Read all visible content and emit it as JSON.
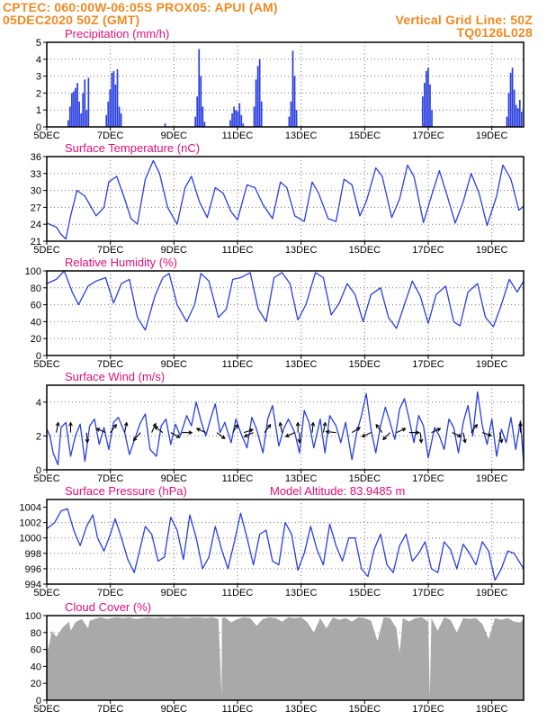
{
  "header": {
    "line1_left": "CPTEC:  060:00W-06:05S   PROX05: APUI (AM)",
    "line2_left": "05DEC2020 50Z (GMT)",
    "line2_right": "Vertical Grid Line: 50Z",
    "line3_right": "TQ0126L028"
  },
  "colors": {
    "header": "#f08a24",
    "panel_title": "#e0107a",
    "series": "#2a3fe0",
    "cloud": "#a9a9a9",
    "arrows": "#000000"
  },
  "chart_data": [
    {
      "type": "bar",
      "title": "Precipitation (mm/h)",
      "ylim": [
        0,
        5
      ],
      "yticks": [
        "0",
        "1",
        "2",
        "3",
        "4",
        "5"
      ],
      "xticks": [
        "5DEC",
        "7DEC",
        "9DEC",
        "11DEC",
        "13DEC",
        "15DEC",
        "17DEC",
        "19DEC"
      ],
      "xlim_days": [
        5,
        20
      ],
      "grid": true,
      "events": [
        {
          "day": 5.65,
          "values": [
            0.4,
            1.2,
            2.0,
            2.1,
            2.3,
            2.6,
            1.5,
            0.8,
            2.0,
            2.8,
            1.0,
            2.9
          ]
        },
        {
          "day": 6.85,
          "values": [
            0.7,
            1.5,
            2.2,
            3.2,
            3.3,
            2.5,
            3.4,
            1.2,
            0.8
          ]
        },
        {
          "day": 8.7,
          "values": [
            0.2
          ]
        },
        {
          "day": 9.65,
          "values": [
            0.6,
            1.8,
            4.6,
            3.0,
            1.2,
            0.3
          ]
        },
        {
          "day": 10.75,
          "values": [
            0.4,
            0.8,
            1.2,
            1.0,
            0.9,
            1.4,
            0.7,
            0.2
          ]
        },
        {
          "day": 11.5,
          "values": [
            1.2,
            2.8,
            3.6,
            4.0,
            1.5
          ]
        },
        {
          "day": 12.6,
          "values": [
            0.6,
            1.5,
            4.5,
            3.0,
            1.0
          ]
        },
        {
          "day": 16.8,
          "values": [
            1.8,
            2.6,
            3.3,
            3.5,
            2.5,
            1.0
          ]
        },
        {
          "day": 19.45,
          "values": [
            0.6,
            2.0,
            3.2,
            3.5,
            2.2,
            1.3,
            1.1,
            1.6,
            0.9
          ]
        }
      ]
    },
    {
      "type": "line",
      "title": "Surface Temperature (nC)",
      "ylim": [
        21,
        36
      ],
      "yticks": [
        "21",
        "24",
        "27",
        "30",
        "33",
        "36"
      ],
      "xticks": [
        "5DEC",
        "7DEC",
        "9DEC",
        "11DEC",
        "13DEC",
        "15DEC",
        "17DEC",
        "19DEC"
      ],
      "grid": true,
      "x_days": [
        5.0,
        5.3,
        5.45,
        5.6,
        5.75,
        5.95,
        6.2,
        6.4,
        6.55,
        6.8,
        6.95,
        7.2,
        7.45,
        7.65,
        7.85,
        8.1,
        8.35,
        8.55,
        8.8,
        9.1,
        9.35,
        9.55,
        9.8,
        10.05,
        10.3,
        10.55,
        10.8,
        11.0,
        11.3,
        11.55,
        11.8,
        12.1,
        12.35,
        12.55,
        12.8,
        13.1,
        13.35,
        13.55,
        13.85,
        14.1,
        14.35,
        14.6,
        14.85,
        15.05,
        15.35,
        15.55,
        15.85,
        16.1,
        16.35,
        16.55,
        16.85,
        17.1,
        17.35,
        17.6,
        17.85,
        18.1,
        18.35,
        18.6,
        18.85,
        19.15,
        19.35,
        19.6,
        19.85,
        20.0
      ],
      "y": [
        24.2,
        23.5,
        22.2,
        21.4,
        25.5,
        30.0,
        29.0,
        27.0,
        25.5,
        27.0,
        31.5,
        32.5,
        28.5,
        25.0,
        24.0,
        32.0,
        35.3,
        33.0,
        27.0,
        24.0,
        30.5,
        32.5,
        28.0,
        25.2,
        30.5,
        29.5,
        26.2,
        24.8,
        31.0,
        30.5,
        27.5,
        25.0,
        31.5,
        30.5,
        25.5,
        24.5,
        31.5,
        29.5,
        25.0,
        24.5,
        32.0,
        31.0,
        25.5,
        28.0,
        34.0,
        32.5,
        25.2,
        28.5,
        34.5,
        32.5,
        24.3,
        29.0,
        33.5,
        29.0,
        24.2,
        28.0,
        33.0,
        29.5,
        23.8,
        29.0,
        34.5,
        32.0,
        26.5,
        27.2
      ]
    },
    {
      "type": "line",
      "title": "Relative Humidity (%)",
      "ylim": [
        0,
        100
      ],
      "yticks": [
        "0",
        "20",
        "40",
        "60",
        "80",
        "100"
      ],
      "xticks": [
        "5DEC",
        "7DEC",
        "9DEC",
        "11DEC",
        "13DEC",
        "15DEC",
        "17DEC",
        "19DEC"
      ],
      "grid": true,
      "x_days": [
        5.0,
        5.3,
        5.55,
        5.8,
        6.0,
        6.3,
        6.55,
        6.85,
        7.1,
        7.35,
        7.6,
        7.85,
        8.1,
        8.4,
        8.65,
        8.85,
        9.1,
        9.4,
        9.65,
        9.85,
        10.1,
        10.4,
        10.65,
        10.85,
        11.1,
        11.4,
        11.65,
        11.9,
        12.15,
        12.4,
        12.65,
        12.9,
        13.15,
        13.45,
        13.7,
        13.95,
        14.2,
        14.45,
        14.7,
        14.95,
        15.2,
        15.5,
        15.75,
        16.0,
        16.25,
        16.5,
        16.75,
        17.0,
        17.25,
        17.55,
        17.8,
        18.0,
        18.25,
        18.55,
        18.8,
        19.05,
        19.3,
        19.55,
        19.8,
        20.0
      ],
      "y": [
        85,
        90,
        100,
        75,
        60,
        82,
        88,
        92,
        62,
        85,
        90,
        45,
        30,
        70,
        92,
        97,
        60,
        40,
        60,
        97,
        88,
        45,
        55,
        90,
        92,
        98,
        55,
        40,
        92,
        98,
        85,
        42,
        60,
        98,
        92,
        48,
        62,
        85,
        72,
        40,
        72,
        80,
        45,
        32,
        60,
        88,
        70,
        38,
        72,
        82,
        40,
        35,
        75,
        85,
        45,
        34,
        60,
        90,
        75,
        88
      ]
    },
    {
      "type": "line",
      "title": "Surface Wind (m/s)",
      "ylim": [
        0,
        5
      ],
      "yticks": [
        "0",
        "2",
        "4"
      ],
      "xticks": [
        "5DEC",
        "7DEC",
        "9DEC",
        "11DEC",
        "13DEC",
        "15DEC",
        "17DEC",
        "19DEC"
      ],
      "grid": true,
      "x_days": [
        5.0,
        5.1,
        5.2,
        5.35,
        5.45,
        5.6,
        5.75,
        5.9,
        6.05,
        6.2,
        6.35,
        6.5,
        6.65,
        6.8,
        6.95,
        7.1,
        7.25,
        7.45,
        7.6,
        7.8,
        7.95,
        8.1,
        8.25,
        8.45,
        8.6,
        8.75,
        8.9,
        9.05,
        9.2,
        9.4,
        9.55,
        9.7,
        9.85,
        10.0,
        10.15,
        10.3,
        10.45,
        10.6,
        10.8,
        10.95,
        11.1,
        11.3,
        11.45,
        11.6,
        11.8,
        11.95,
        12.1,
        12.3,
        12.45,
        12.6,
        12.8,
        12.95,
        13.1,
        13.25,
        13.4,
        13.6,
        13.75,
        13.9,
        14.1,
        14.25,
        14.4,
        14.6,
        14.75,
        14.9,
        15.05,
        15.2,
        15.35,
        15.5,
        15.65,
        15.8,
        15.95,
        16.1,
        16.25,
        16.4,
        16.55,
        16.7,
        16.85,
        17.0,
        17.2,
        17.35,
        17.5,
        17.65,
        17.8,
        17.95,
        18.1,
        18.25,
        18.4,
        18.55,
        18.7,
        18.85,
        19.0,
        19.15,
        19.3,
        19.45,
        19.6,
        19.75,
        19.9,
        20.0
      ],
      "y": [
        2.4,
        2.0,
        1.0,
        0.3,
        2.5,
        2.8,
        0.8,
        2.0,
        2.7,
        0.5,
        2.6,
        3.0,
        1.5,
        2.5,
        1.2,
        2.8,
        3.1,
        2.2,
        0.9,
        2.0,
        2.8,
        3.3,
        1.2,
        0.8,
        2.6,
        3.0,
        1.5,
        2.7,
        2.0,
        3.2,
        2.6,
        4.0,
        2.9,
        2.0,
        3.0,
        3.9,
        2.2,
        2.8,
        1.6,
        3.0,
        2.2,
        1.3,
        3.1,
        2.4,
        1.0,
        3.0,
        3.8,
        1.4,
        2.4,
        3.0,
        2.2,
        1.0,
        3.5,
        2.8,
        1.3,
        3.0,
        1.0,
        3.2,
        2.6,
        1.6,
        2.8,
        0.6,
        2.2,
        3.2,
        4.5,
        2.4,
        1.0,
        2.6,
        3.7,
        2.8,
        1.8,
        3.6,
        4.2,
        3.0,
        1.6,
        3.2,
        2.6,
        0.7,
        2.5,
        2.0,
        1.2,
        3.0,
        2.5,
        1.0,
        2.8,
        3.8,
        2.0,
        4.6,
        2.6,
        1.5,
        3.0,
        0.8,
        2.4,
        1.6,
        3.1,
        1.2,
        2.9,
        0.4
      ],
      "vectors": [
        {
          "day": 5.3,
          "dx": 0.2,
          "dy": 1.0
        },
        {
          "day": 5.75,
          "dx": 0.0,
          "dy": 1.0
        },
        {
          "day": 6.25,
          "dx": 0.1,
          "dy": -1.0
        },
        {
          "day": 6.85,
          "dx": -0.9,
          "dy": 0.4
        },
        {
          "day": 7.0,
          "dx": 0.6,
          "dy": 0.8
        },
        {
          "day": 7.45,
          "dx": 0.2,
          "dy": 1.0
        },
        {
          "day": 7.95,
          "dx": -0.7,
          "dy": -0.8
        },
        {
          "day": 8.3,
          "dx": 0.4,
          "dy": 0.9
        },
        {
          "day": 8.65,
          "dx": -0.8,
          "dy": 0.6
        },
        {
          "day": 8.9,
          "dx": 0.9,
          "dy": -0.5
        },
        {
          "day": 9.25,
          "dx": 1.0,
          "dy": 0.0
        },
        {
          "day": 10.0,
          "dx": -0.9,
          "dy": 0.4
        },
        {
          "day": 10.35,
          "dx": 0.8,
          "dy": -0.6
        },
        {
          "day": 10.85,
          "dx": 0.5,
          "dy": 0.8
        },
        {
          "day": 11.2,
          "dx": 0.9,
          "dy": 0.3
        },
        {
          "day": 11.5,
          "dx": -0.9,
          "dy": -0.4
        },
        {
          "day": 11.85,
          "dx": 0.6,
          "dy": 0.8
        },
        {
          "day": 12.4,
          "dx": -0.2,
          "dy": 1.0
        },
        {
          "day": 12.8,
          "dx": -0.9,
          "dy": -0.4
        },
        {
          "day": 12.9,
          "dx": 0.0,
          "dy": 1.0
        },
        {
          "day": 12.95,
          "dx": 0.0,
          "dy": -1.0
        },
        {
          "day": 13.35,
          "dx": 0.1,
          "dy": 1.0
        },
        {
          "day": 13.7,
          "dx": 0.2,
          "dy": 1.0
        },
        {
          "day": 14.1,
          "dx": -1.0,
          "dy": 0.1
        },
        {
          "day": 14.6,
          "dx": 0.8,
          "dy": 0.5
        },
        {
          "day": 15.2,
          "dx": -0.9,
          "dy": -0.4
        },
        {
          "day": 15.55,
          "dx": -0.6,
          "dy": 0.8
        },
        {
          "day": 15.8,
          "dx": -0.7,
          "dy": -0.7
        },
        {
          "day": 16.0,
          "dx": 0.9,
          "dy": 0.4
        },
        {
          "day": 16.4,
          "dx": 1.0,
          "dy": 0.0
        },
        {
          "day": 16.75,
          "dx": 0.1,
          "dy": -1.0
        },
        {
          "day": 17.1,
          "dx": 0.9,
          "dy": 0.4
        },
        {
          "day": 17.75,
          "dx": 0.9,
          "dy": -0.4
        },
        {
          "day": 18.1,
          "dx": 0.2,
          "dy": -1.0
        },
        {
          "day": 18.35,
          "dx": 0.6,
          "dy": 0.8
        },
        {
          "day": 18.7,
          "dx": 0.9,
          "dy": -0.3
        },
        {
          "day": 19.25,
          "dx": 0.2,
          "dy": -1.0
        },
        {
          "day": 19.9,
          "dx": 0.0,
          "dy": 1.0
        }
      ]
    },
    {
      "type": "line",
      "title": "Surface Pressure (hPa)",
      "annotation": "Model Altitude: 83.9485  m",
      "ylim": [
        994,
        1005
      ],
      "yticks": [
        "994",
        "996",
        "998",
        "1000",
        "1002",
        "1004"
      ],
      "xticks": [
        "5DEC",
        "7DEC",
        "9DEC",
        "11DEC",
        "13DEC",
        "15DEC",
        "17DEC",
        "19DEC"
      ],
      "grid": true,
      "x_days": [
        5.0,
        5.25,
        5.45,
        5.65,
        5.85,
        6.05,
        6.25,
        6.45,
        6.6,
        6.8,
        7.0,
        7.15,
        7.35,
        7.55,
        7.75,
        7.9,
        8.1,
        8.3,
        8.5,
        8.7,
        8.9,
        9.1,
        9.3,
        9.5,
        9.7,
        9.9,
        10.1,
        10.3,
        10.5,
        10.7,
        10.9,
        11.1,
        11.3,
        11.5,
        11.7,
        11.9,
        12.1,
        12.3,
        12.5,
        12.7,
        12.9,
        13.1,
        13.3,
        13.5,
        13.7,
        13.9,
        14.1,
        14.3,
        14.5,
        14.7,
        14.9,
        15.1,
        15.3,
        15.5,
        15.7,
        15.9,
        16.1,
        16.3,
        16.5,
        16.7,
        16.9,
        17.1,
        17.3,
        17.5,
        17.7,
        17.9,
        18.1,
        18.3,
        18.5,
        18.7,
        18.9,
        19.1,
        19.3,
        19.5,
        19.7,
        20.0
      ],
      "y": [
        1001.2,
        1002.0,
        1003.5,
        1003.8,
        1001.0,
        999.0,
        1001.5,
        1003.0,
        1000.0,
        998.3,
        1000.5,
        1002.5,
        1000.0,
        997.2,
        995.5,
        998.0,
        1001.5,
        1000.5,
        997.0,
        997.5,
        1002.7,
        1001.0,
        997.2,
        1003.0,
        1000.0,
        996.0,
        997.5,
        1001.5,
        998.5,
        996.0,
        999.5,
        1003.2,
        1000.0,
        996.5,
        1000.5,
        1001.0,
        997.0,
        996.5,
        1002.0,
        1000.5,
        995.8,
        998.0,
        1001.5,
        998.5,
        996.5,
        1001.8,
        999.0,
        997.0,
        1000.0,
        1000.0,
        996.0,
        995.0,
        998.5,
        1000.5,
        996.5,
        995.5,
        999.0,
        1000.5,
        997.0,
        998.0,
        999.5,
        996.0,
        995.5,
        999.5,
        998.5,
        996.0,
        999.2,
        998.0,
        996.5,
        999.5,
        998.3,
        994.5,
        996.0,
        998.3,
        998.0,
        996.0
      ]
    },
    {
      "type": "area",
      "title": "Cloud Cover (%)",
      "ylim": [
        0,
        100
      ],
      "yticks": [
        "0",
        "20",
        "40",
        "60",
        "80",
        "100"
      ],
      "xticks": [
        "5DEC",
        "7DEC",
        "9DEC",
        "11DEC",
        "13DEC",
        "15DEC",
        "17DEC",
        "19DEC"
      ],
      "grid": true,
      "x_days": [
        5.0,
        5.1,
        5.15,
        5.3,
        5.5,
        5.7,
        5.75,
        5.9,
        6.1,
        6.3,
        6.35,
        6.5,
        6.7,
        6.9,
        7.0,
        7.2,
        7.4,
        7.6,
        7.8,
        8.0,
        8.2,
        8.4,
        8.6,
        8.8,
        9.0,
        9.2,
        9.4,
        9.6,
        9.8,
        10.0,
        10.2,
        10.4,
        10.5,
        10.51,
        10.6,
        10.8,
        11.0,
        11.2,
        11.4,
        11.6,
        11.8,
        12.0,
        12.2,
        12.4,
        12.6,
        12.8,
        13.0,
        13.2,
        13.4,
        13.6,
        13.8,
        14.0,
        14.2,
        14.4,
        14.6,
        14.8,
        15.0,
        15.2,
        15.4,
        15.6,
        15.8,
        16.0,
        16.1,
        16.2,
        16.4,
        16.6,
        16.8,
        17.0,
        17.05,
        17.1,
        17.3,
        17.5,
        17.7,
        17.9,
        18.1,
        18.3,
        18.5,
        18.7,
        18.9,
        19.1,
        19.3,
        19.5,
        19.7,
        19.9,
        20.0
      ],
      "y": [
        55,
        70,
        82,
        75,
        86,
        93,
        82,
        92,
        96,
        85,
        94,
        96,
        98,
        96,
        97,
        98,
        97,
        98,
        96,
        97,
        98,
        97,
        98,
        97,
        98,
        98,
        97,
        98,
        98,
        97,
        98,
        96,
        5,
        97,
        98,
        92,
        96,
        98,
        97,
        88,
        96,
        98,
        97,
        93,
        98,
        97,
        98,
        92,
        80,
        97,
        85,
        98,
        95,
        97,
        93,
        98,
        97,
        94,
        70,
        98,
        97,
        85,
        55,
        97,
        93,
        97,
        98,
        93,
        2,
        97,
        82,
        98,
        95,
        80,
        97,
        96,
        97,
        90,
        72,
        97,
        95,
        97,
        93,
        92,
        96
      ]
    }
  ]
}
